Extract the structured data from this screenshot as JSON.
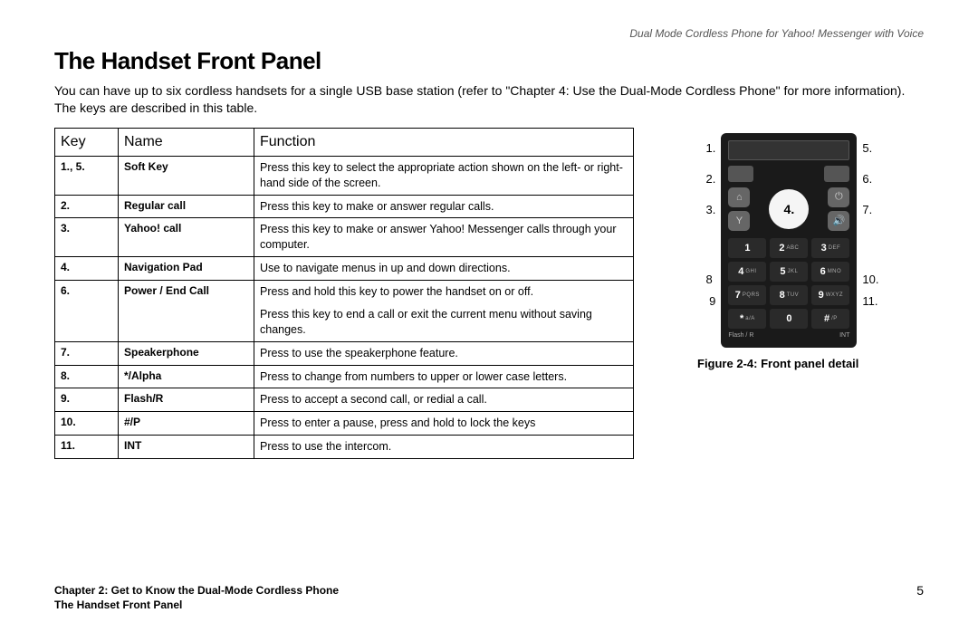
{
  "header": {
    "product": "Dual Mode Cordless Phone for Yahoo! Messenger with Voice"
  },
  "title": "The Handset Front Panel",
  "intro": "You can have up to six cordless handsets for a single USB base station (refer to \"Chapter 4: Use the Dual-Mode Cordless Phone\" for more information). The keys are described in this table.",
  "table": {
    "headers": {
      "key": "Key",
      "name": "Name",
      "function": "Function"
    },
    "rows": [
      {
        "key": "1., 5.",
        "name": "Soft Key",
        "func": [
          "Press this key to select the appropriate action shown on the left- or right-hand side of the screen."
        ]
      },
      {
        "key": "2.",
        "name": "Regular call",
        "func": [
          "Press this key to make or answer regular calls."
        ]
      },
      {
        "key": "3.",
        "name": "Yahoo! call",
        "func": [
          "Press this key to make or answer Yahoo! Messenger calls through your computer."
        ]
      },
      {
        "key": "4.",
        "name": "Navigation Pad",
        "func": [
          "Use to navigate menus in up and down directions."
        ]
      },
      {
        "key": "6.",
        "name": "Power / End Call",
        "func": [
          "Press and hold this key to power the handset on or off.",
          "Press this key to end a call or exit the current menu without saving changes."
        ]
      },
      {
        "key": "7.",
        "name": "Speakerphone",
        "func": [
          "Press to use the speakerphone feature."
        ]
      },
      {
        "key": "8.",
        "name": "*/Alpha",
        "func": [
          "Press to change from numbers to upper or lower case letters."
        ]
      },
      {
        "key": "9.",
        "name": "Flash/R",
        "func": [
          "Press to accept a second call, or redial a call."
        ]
      },
      {
        "key": "10.",
        "name": "#/P",
        "func": [
          "Press to enter a pause, press and hold to lock the keys"
        ]
      },
      {
        "key": "11.",
        "name": "INT",
        "func": [
          "Press to use the intercom."
        ]
      }
    ]
  },
  "figure": {
    "left_labels": [
      "1.",
      "2.",
      "3.",
      "8",
      "9"
    ],
    "right_labels": [
      "5.",
      "6.",
      "7.",
      "10.",
      "11."
    ],
    "nav_label": "4.",
    "caption": "Figure 2-4: Front panel detail",
    "keypad": [
      {
        "n": "1",
        "l": ""
      },
      {
        "n": "2",
        "l": "ABC"
      },
      {
        "n": "3",
        "l": "DEF"
      },
      {
        "n": "4",
        "l": "GHI"
      },
      {
        "n": "5",
        "l": "JKL"
      },
      {
        "n": "6",
        "l": "MNO"
      },
      {
        "n": "7",
        "l": "PQRS"
      },
      {
        "n": "8",
        "l": "TUV"
      },
      {
        "n": "9",
        "l": "WXYZ"
      },
      {
        "n": "*",
        "l": "a/A"
      },
      {
        "n": "0",
        "l": ""
      },
      {
        "n": "#",
        "l": "/P"
      }
    ],
    "bottom": {
      "left": "Flash / R",
      "right": "INT"
    }
  },
  "footer": {
    "chapter": "Chapter 2: Get to Know the Dual-Mode Cordless Phone",
    "section": "The Handset Front Panel",
    "page": "5"
  }
}
